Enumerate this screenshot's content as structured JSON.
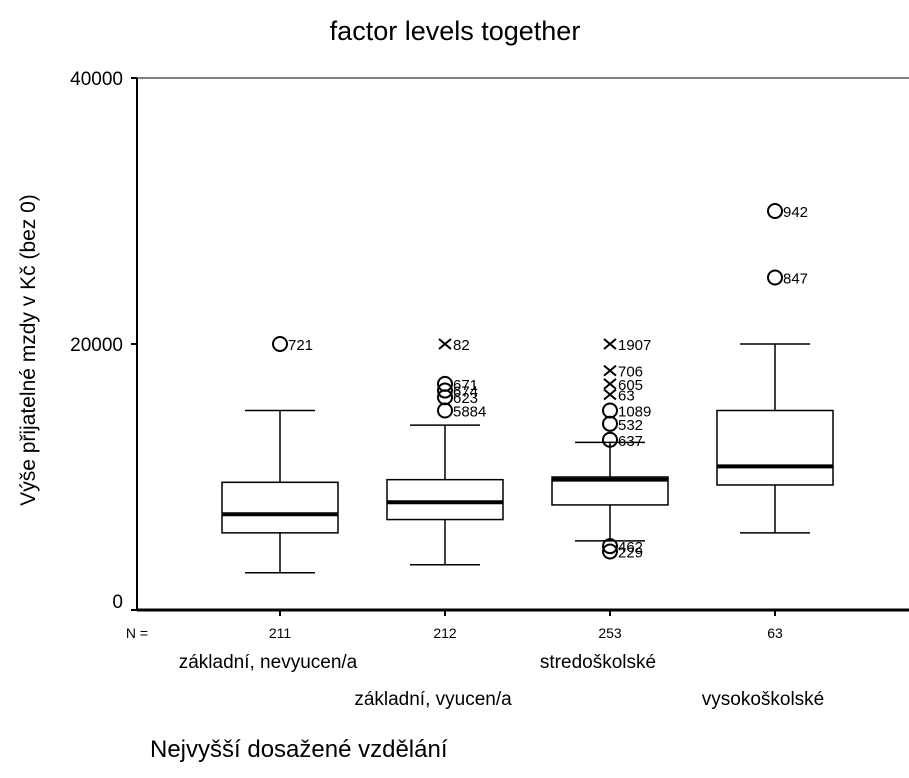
{
  "chart_data": {
    "type": "boxplot",
    "title": "factor levels together",
    "xlabel": "Nejvyšší dosažené vzdělání",
    "ylabel": "Výše přijatelné mzdy v Kč (bez 0)",
    "ylim": [
      0,
      40000
    ],
    "yticks": [
      0,
      20000,
      40000
    ],
    "n_label": "N =",
    "categories": [
      "základní, nevyucen/a",
      "základní, vyucen/a",
      "stredoškolské",
      "vysokoškolské"
    ],
    "groups": [
      {
        "category": "základní, nevyucen/a",
        "n": "211",
        "whisker_low": 2800,
        "q1": 5800,
        "median": 7200,
        "q3": 9600,
        "whisker_high": 15000,
        "outliers": [
          {
            "value": 20000,
            "marker": "circle",
            "label": "721"
          }
        ]
      },
      {
        "category": "základní, vyucen/a",
        "n": "212",
        "whisker_low": 3400,
        "q1": 6800,
        "median": 8100,
        "q3": 9800,
        "whisker_high": 13900,
        "outliers": [
          {
            "value": 20000,
            "marker": "cross",
            "label": "82"
          },
          {
            "value": 17000,
            "marker": "circle",
            "label": "671"
          },
          {
            "value": 16500,
            "marker": "circle",
            "label": "674"
          },
          {
            "value": 16000,
            "marker": "circle",
            "label": "623"
          },
          {
            "value": 15000,
            "marker": "circle",
            "label": "5884"
          }
        ]
      },
      {
        "category": "stredoškolské",
        "n": "253",
        "whisker_low": 5200,
        "q1": 7900,
        "median": 9800,
        "q3": 10000,
        "whisker_high": 12600,
        "outliers": [
          {
            "value": 20000,
            "marker": "cross",
            "label": "1907"
          },
          {
            "value": 18000,
            "marker": "cross",
            "label": "706"
          },
          {
            "value": 17000,
            "marker": "cross",
            "label": "605"
          },
          {
            "value": 16200,
            "marker": "cross",
            "label": "63"
          },
          {
            "value": 15000,
            "marker": "circle",
            "label": "1089"
          },
          {
            "value": 14000,
            "marker": "circle",
            "label": "532"
          },
          {
            "value": 12800,
            "marker": "circle",
            "label": "637"
          },
          {
            "value": 4800,
            "marker": "circle",
            "label": "462"
          },
          {
            "value": 4400,
            "marker": "circle",
            "label": "229"
          }
        ]
      },
      {
        "category": "vysokoškolské",
        "n": "63",
        "whisker_low": 5800,
        "q1": 9400,
        "median": 10800,
        "q3": 15000,
        "whisker_high": 20000,
        "outliers": [
          {
            "value": 30000,
            "marker": "circle",
            "label": "942"
          },
          {
            "value": 25000,
            "marker": "circle",
            "label": "847"
          }
        ]
      }
    ]
  }
}
